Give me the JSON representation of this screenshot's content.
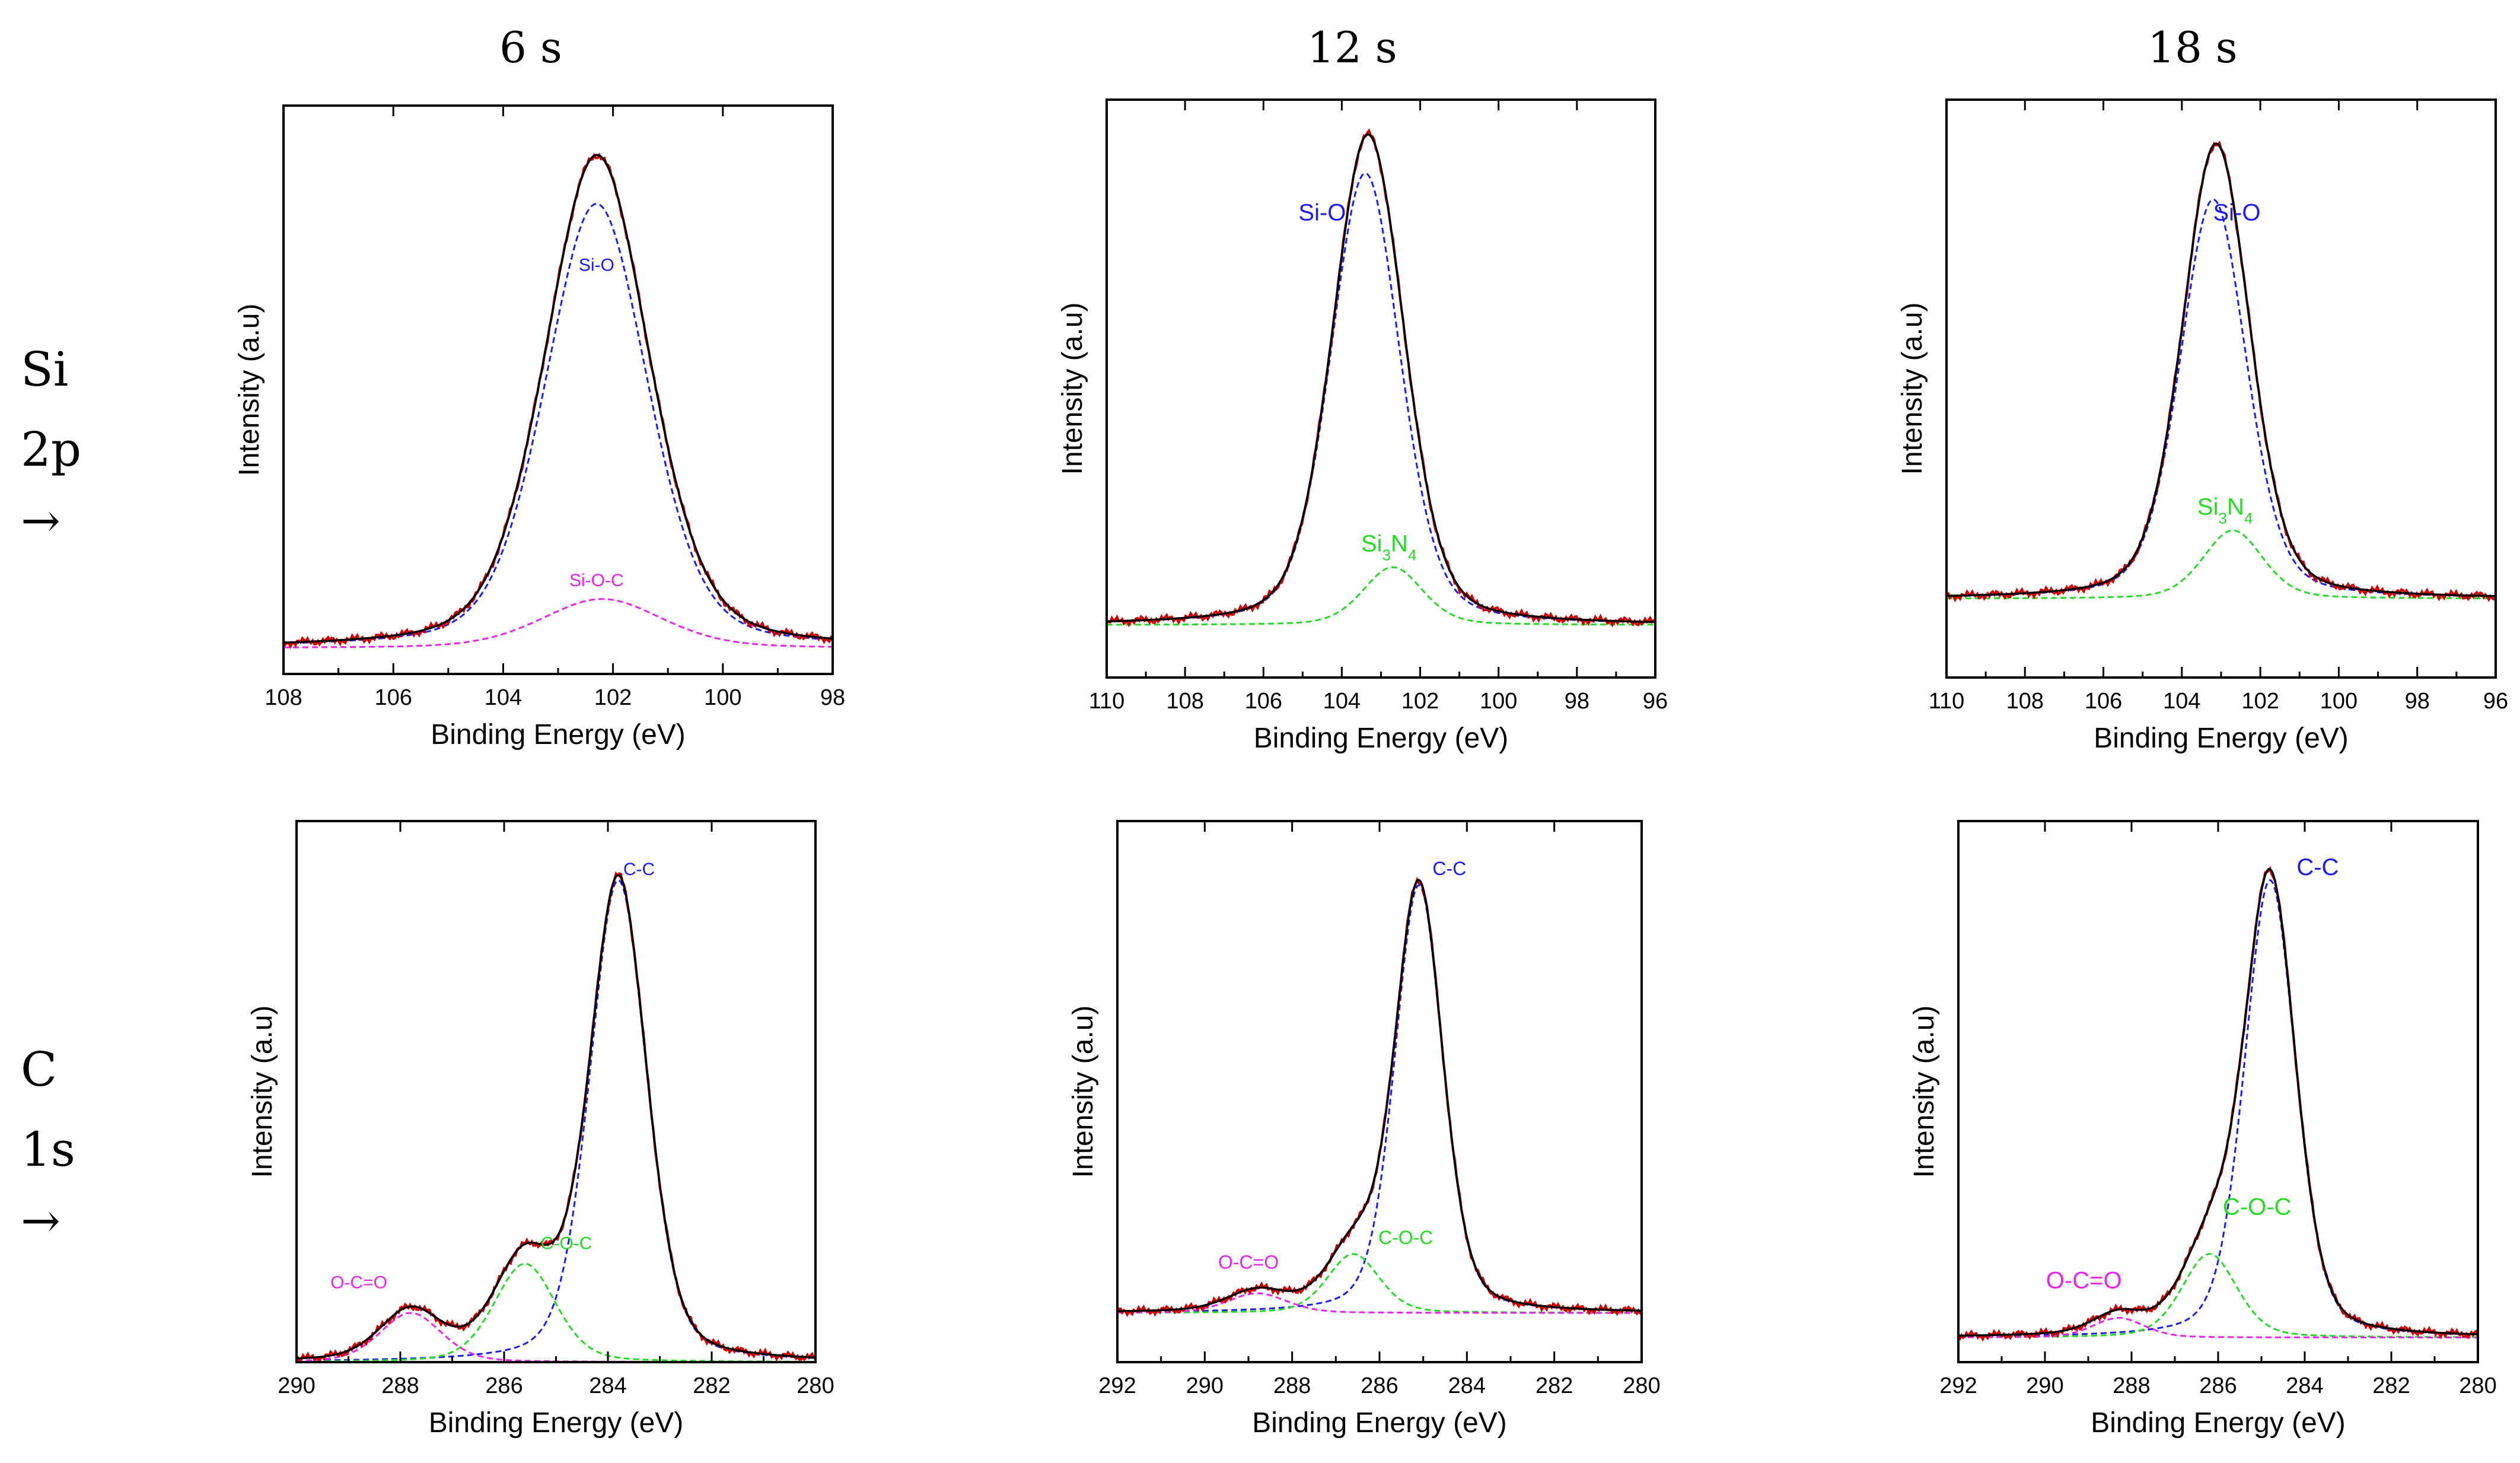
{
  "figure": {
    "column_titles": [
      "6 s",
      "12 s",
      "18 s"
    ],
    "row_labels": [
      {
        "element": "Si",
        "orbital": "2p",
        "arrow": "→"
      },
      {
        "element": "C",
        "orbital": "1s",
        "arrow": "→"
      }
    ]
  },
  "colors": {
    "measured": "#d40000",
    "envelope": "#000000",
    "blue": "#1a1aff",
    "green": "#22dd22",
    "magenta": "#ee22ee"
  },
  "chart_data": [
    {
      "type": "line",
      "panel": "Si 2p, 6 s",
      "xlabel": "Binding Energy (eV)",
      "ylabel": "Intensity (a.u)",
      "xlim": [
        108,
        98
      ],
      "xticks": [
        108,
        106,
        104,
        102,
        100,
        98
      ],
      "ylim": [
        0,
        1.1
      ],
      "baseline": 0.05,
      "components": [
        {
          "name": "Si-O",
          "center": 102.3,
          "height": 0.86,
          "fwhm": 2.2,
          "color": "blue",
          "label_pos": [
            102.3,
            0.78
          ],
          "label_size": 30
        },
        {
          "name": "Si-O-C",
          "center": 102.2,
          "height": 0.095,
          "fwhm": 2.6,
          "color": "magenta",
          "label_pos": [
            102.3,
            0.17
          ],
          "label_size": 30
        }
      ]
    },
    {
      "type": "line",
      "panel": "Si 2p, 12 s",
      "xlabel": "Binding Energy (eV)",
      "ylabel": "Intensity (a.u)",
      "xlim": [
        110,
        96
      ],
      "xticks": [
        110,
        108,
        106,
        104,
        102,
        100,
        98,
        96
      ],
      "ylim": [
        0,
        1.1
      ],
      "baseline": 0.1,
      "components": [
        {
          "name": "Si-O",
          "center": 103.4,
          "height": 0.86,
          "fwhm": 2.1,
          "color": "blue",
          "label_pos": [
            104.5,
            0.87
          ],
          "label_size": 40
        },
        {
          "name": "Si3N4",
          "center": 102.7,
          "height": 0.11,
          "fwhm": 1.8,
          "color": "green",
          "label_pos": [
            102.8,
            0.24
          ],
          "label_size": 40
        }
      ]
    },
    {
      "type": "line",
      "panel": "Si 2p, 18 s",
      "xlabel": "Binding Energy (eV)",
      "ylabel": "Intensity (a.u)",
      "xlim": [
        110,
        96
      ],
      "xticks": [
        110,
        108,
        106,
        104,
        102,
        100,
        98,
        96
      ],
      "ylim": [
        0,
        1.1
      ],
      "baseline": 0.15,
      "components": [
        {
          "name": "Si-O",
          "center": 103.2,
          "height": 0.76,
          "fwhm": 2.0,
          "color": "blue",
          "label_pos": [
            102.6,
            0.87
          ],
          "label_size": 40
        },
        {
          "name": "Si3N4",
          "center": 102.7,
          "height": 0.13,
          "fwhm": 1.8,
          "color": "green",
          "label_pos": [
            102.9,
            0.31
          ],
          "label_size": 40
        }
      ]
    },
    {
      "type": "line",
      "panel": "C 1s, 6 s",
      "xlabel": "Binding Energy (eV)",
      "ylabel": "Intensity (a.u)",
      "xlim": [
        290,
        280
      ],
      "xticks": [
        290,
        288,
        286,
        284,
        282,
        280
      ],
      "ylim": [
        0,
        1.1
      ],
      "baseline": 0.0,
      "components": [
        {
          "name": "C-C",
          "center": 283.8,
          "height": 0.98,
          "fwhm": 1.3,
          "color": "blue",
          "label_pos": [
            283.4,
            0.99
          ],
          "label_size": 30
        },
        {
          "name": "C-O-C",
          "center": 285.6,
          "height": 0.2,
          "fwhm": 1.4,
          "color": "green",
          "label_pos": [
            284.8,
            0.23
          ],
          "label_size": 30
        },
        {
          "name": "O-C=O",
          "center": 287.8,
          "height": 0.1,
          "fwhm": 1.4,
          "color": "magenta",
          "label_pos": [
            288.8,
            0.15
          ],
          "label_size": 30
        }
      ]
    },
    {
      "type": "line",
      "panel": "C 1s, 12 s",
      "xlabel": "Binding Energy (eV)",
      "ylabel": "Intensity (a.u)",
      "xlim": [
        292,
        280
      ],
      "xticks": [
        292,
        290,
        288,
        286,
        284,
        282,
        280
      ],
      "ylim": [
        0,
        1.1
      ],
      "baseline": 0.1,
      "components": [
        {
          "name": "C-C",
          "center": 285.1,
          "height": 0.87,
          "fwhm": 1.3,
          "color": "blue",
          "label_pos": [
            284.4,
            0.99
          ],
          "label_size": 32
        },
        {
          "name": "C-O-C",
          "center": 286.6,
          "height": 0.12,
          "fwhm": 1.4,
          "color": "green",
          "label_pos": [
            285.4,
            0.24
          ],
          "label_size": 32
        },
        {
          "name": "O-C=O",
          "center": 288.8,
          "height": 0.04,
          "fwhm": 1.6,
          "color": "magenta",
          "label_pos": [
            289.0,
            0.19
          ],
          "label_size": 32
        }
      ]
    },
    {
      "type": "line",
      "panel": "C 1s, 18 s",
      "xlabel": "Binding Energy (eV)",
      "ylabel": "Intensity (a.u)",
      "xlim": [
        292,
        280
      ],
      "xticks": [
        292,
        290,
        288,
        286,
        284,
        282,
        280
      ],
      "ylim": [
        0,
        1.1
      ],
      "baseline": 0.05,
      "components": [
        {
          "name": "C-C",
          "center": 284.8,
          "height": 0.93,
          "fwhm": 1.4,
          "color": "blue",
          "label_pos": [
            283.7,
            0.99
          ],
          "label_size": 40
        },
        {
          "name": "C-O-C",
          "center": 286.2,
          "height": 0.17,
          "fwhm": 1.5,
          "color": "green",
          "label_pos": [
            285.1,
            0.3
          ],
          "label_size": 40
        },
        {
          "name": "O-C=O",
          "center": 288.3,
          "height": 0.04,
          "fwhm": 1.4,
          "color": "magenta",
          "label_pos": [
            289.1,
            0.15
          ],
          "label_size": 40
        }
      ]
    }
  ]
}
